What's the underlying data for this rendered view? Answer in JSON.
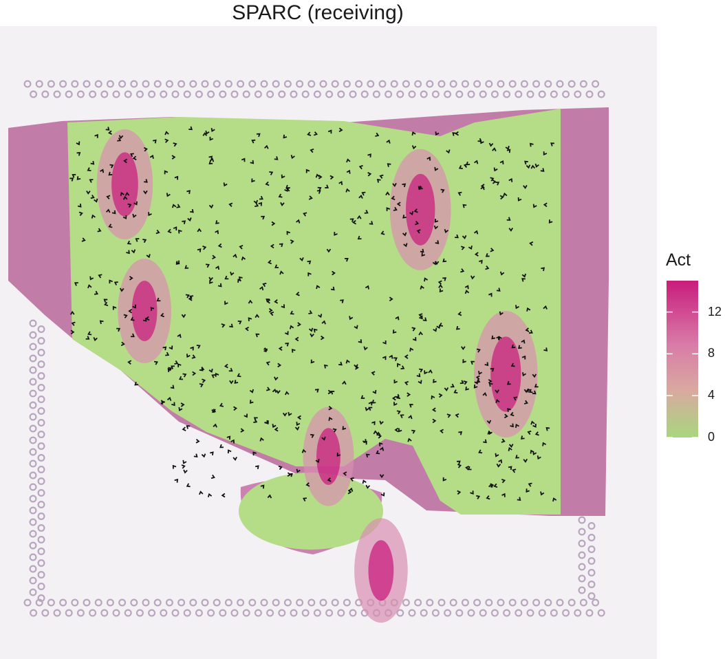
{
  "chart_data": {
    "type": "heatmap",
    "title": "SPARC (receiving)",
    "legend": {
      "title": "Act",
      "ticks": [
        0,
        4,
        8,
        12
      ],
      "range": [
        0,
        15
      ],
      "colors": [
        "#a8d67e",
        "#d9a9a0",
        "#d97aa8",
        "#c81c7c"
      ]
    },
    "colors": {
      "low": "#b5dc86",
      "mid": "#d98fb0",
      "high": "#c8207e",
      "tissue": "#b85a94",
      "fiducial": "#b9a5bf",
      "arrow": "#111111"
    },
    "grid": false,
    "high_activity_regions": [
      {
        "x": 0.77,
        "y": 0.55,
        "value": 13
      },
      {
        "x": 0.64,
        "y": 0.29,
        "value": 12
      },
      {
        "x": 0.19,
        "y": 0.25,
        "value": 10
      },
      {
        "x": 0.22,
        "y": 0.45,
        "value": 9
      },
      {
        "x": 0.5,
        "y": 0.68,
        "value": 8
      },
      {
        "x": 0.58,
        "y": 0.86,
        "value": 9
      }
    ]
  }
}
